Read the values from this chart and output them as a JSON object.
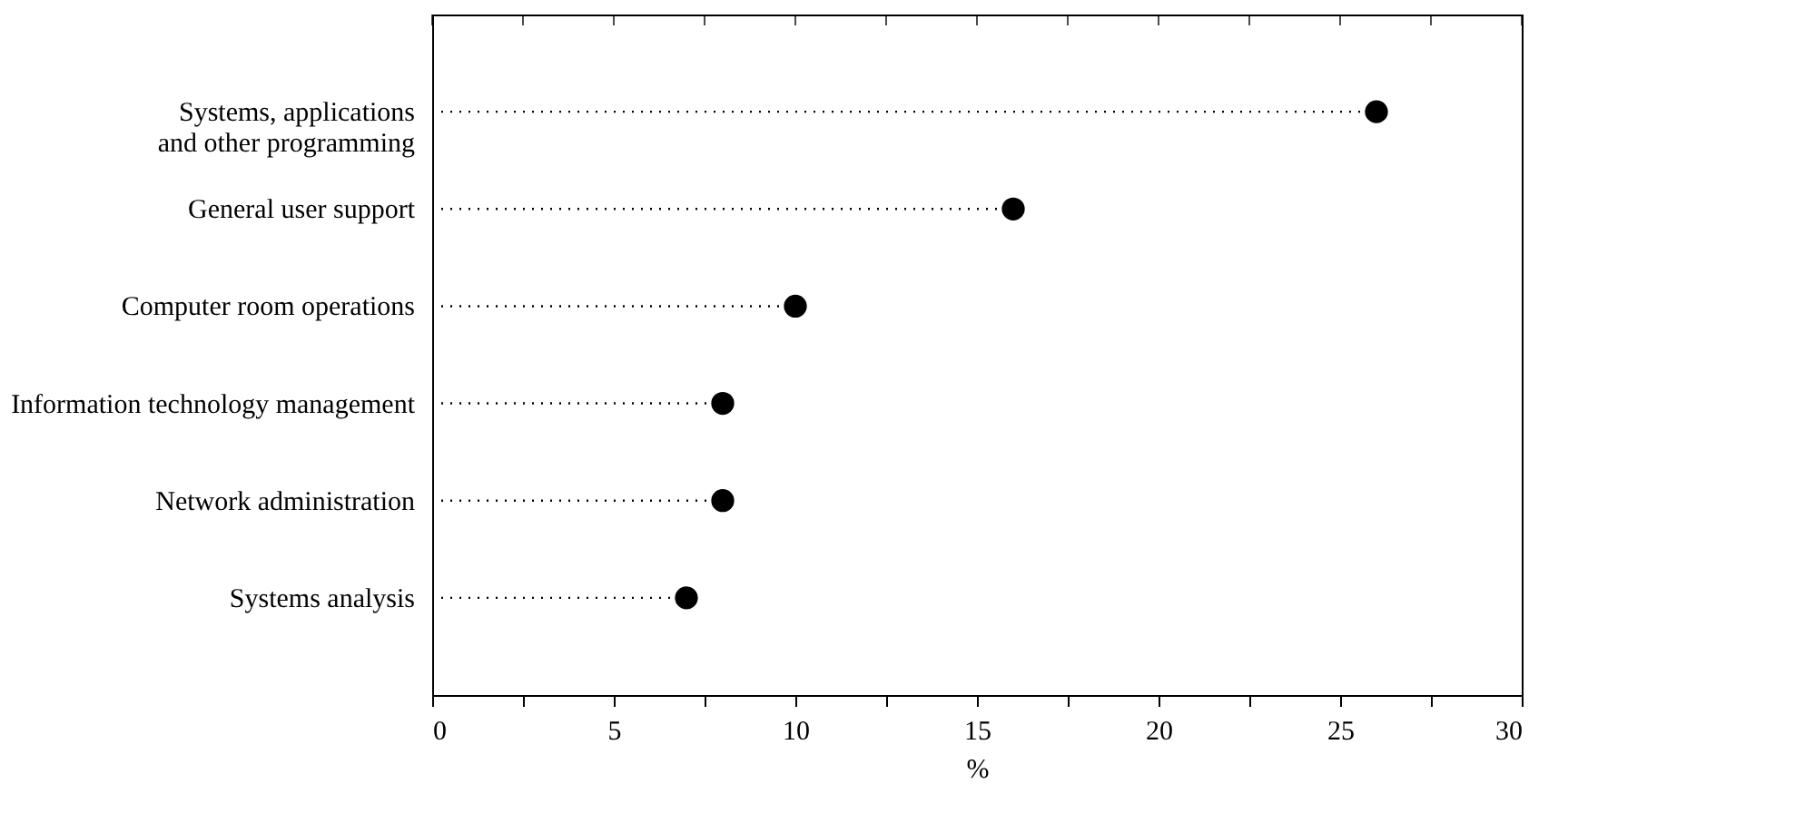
{
  "chart_data": {
    "type": "lollipop",
    "orientation": "horizontal",
    "xlabel": "%",
    "categories": [
      "Systems, applications\nand other programming",
      "General user support",
      "Computer room operations",
      "Information technology management",
      "Network administration",
      "Systems analysis"
    ],
    "series": [
      {
        "color": "#000000",
        "values": [
          26,
          16,
          10,
          8,
          8,
          7
        ]
      }
    ],
    "xlim": [
      0,
      30
    ],
    "xticks": [
      0,
      {
        "value": 2.5,
        "label": null
      },
      5,
      {
        "value": 7.5,
        "label": null
      },
      10,
      {
        "value": 12.5,
        "label": null
      },
      15,
      {
        "value": 17.5,
        "label": null
      },
      20,
      {
        "value": 22.5,
        "label": null
      },
      25,
      {
        "value": 27.5,
        "label": null
      },
      30
    ],
    "marker": "circle",
    "line_style": "dotted"
  }
}
